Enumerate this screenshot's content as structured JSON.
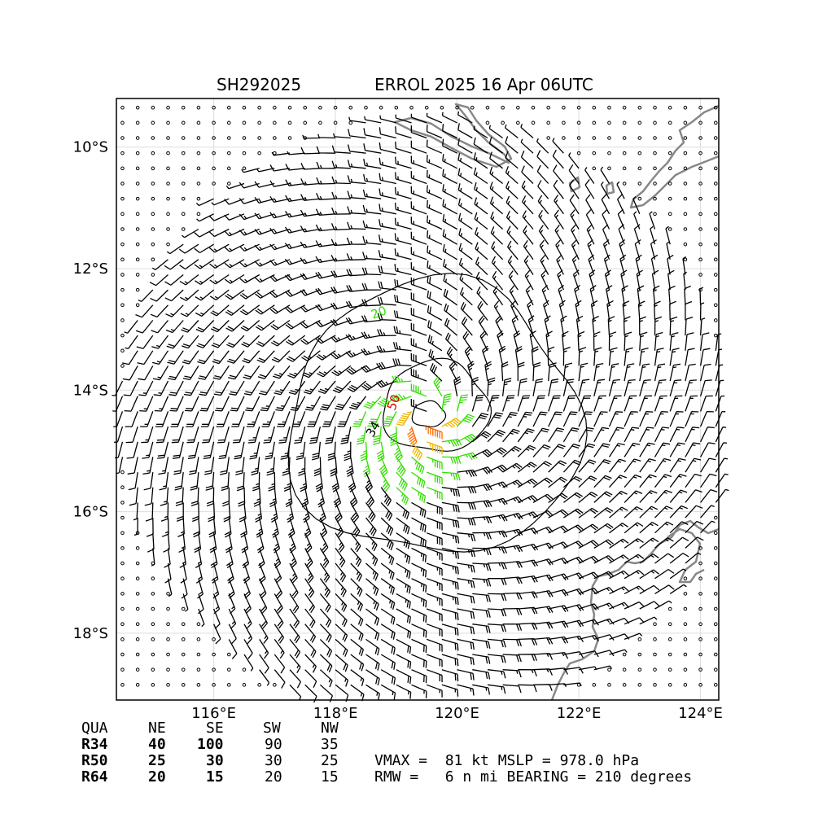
{
  "header": {
    "storm_id": "SH292025",
    "storm_title": "ERROL 2025 16 Apr 06UTC"
  },
  "map": {
    "lon_range": [
      114.4,
      124.3
    ],
    "lat_range": [
      -19.1,
      -9.2
    ],
    "lon_ticks": [
      "116°E",
      "118°E",
      "120°E",
      "122°E",
      "124°E"
    ],
    "lat_ticks": [
      "10°S",
      "12°S",
      "14°S",
      "16°S",
      "18°S"
    ],
    "grid": true,
    "storm_center": {
      "lon": 119.5,
      "lat": -14.4
    },
    "contour_labels": [
      "20",
      "34",
      "50"
    ],
    "colors": {
      "calm": "#000000",
      "light": "#000000",
      "gale": "#33dd00",
      "storm": "#f0b400",
      "hurricane": "#ff6a00",
      "core": "#dd0000",
      "coastline": "#888888",
      "grid": "#dddddd"
    }
  },
  "radii_table": {
    "headers": [
      "QUA",
      "NE",
      "SE",
      "SW",
      "NW"
    ],
    "rows": [
      {
        "label": "R34",
        "values": [
          "40",
          "100",
          "90",
          "35"
        ]
      },
      {
        "label": "R50",
        "values": [
          "25",
          "30",
          "30",
          "25"
        ]
      },
      {
        "label": "R64",
        "values": [
          "20",
          "15",
          "20",
          "15"
        ]
      }
    ]
  },
  "stats": {
    "line1": "VMAX =  81 kt MSLP = 978.0 hPa",
    "line2": "RMW =   6 n mi BEARING = 210 degrees"
  }
}
